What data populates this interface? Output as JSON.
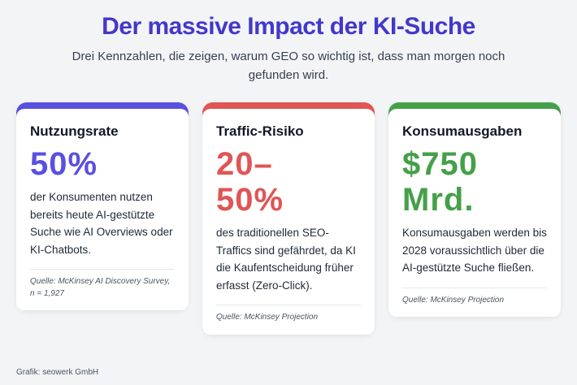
{
  "page": {
    "title": "Der massive Impact der KI-Suche",
    "subtitle": "Drei Kennzahlen, die zeigen, warum GEO so wichtig ist, dass man morgen noch gefunden wird.",
    "credit": "Grafik: seowerk GmbH",
    "background_color": "#f3f4f6",
    "title_color": "#4338ca"
  },
  "cards": [
    {
      "heading": "Nutzungsrate",
      "stat": "50%",
      "accent": "#5a50e0",
      "body": "der Konsumenten nutzen bereits heute AI-gestützte Suche wie AI Overviews oder KI-Chatbots.",
      "source": "Quelle: McKinsey AI Discovery Survey, n = 1,927"
    },
    {
      "heading": "Traffic-Risiko",
      "stat": "20–\n50%",
      "accent": "#e05555",
      "body": "des traditionellen SEO-Traffics sind gefährdet, da KI die Kaufentscheidung früher erfasst (Zero-Click).",
      "source": "Quelle: McKinsey Projection"
    },
    {
      "heading": "Konsumausgaben",
      "stat": "$750\nMrd.",
      "accent": "#45a049",
      "body": "Konsumausgaben werden bis 2028 voraussichtlich über die AI-gestützte Suche fließen.",
      "source": "Quelle: McKinsey Projection"
    }
  ],
  "chart_data": {
    "type": "table",
    "title": "Der massive Impact der KI-Suche",
    "subtitle": "Drei Kennzahlen, die zeigen, warum GEO so wichtig ist, dass man morgen noch gefunden wird.",
    "categories": [
      "Nutzungsrate",
      "Traffic-Risiko",
      "Konsumausgaben"
    ],
    "values": [
      "50%",
      "20–50%",
      "$750 Mrd."
    ],
    "annotations": [
      "der Konsumenten nutzen bereits heute AI-gestützte Suche wie AI Overviews oder KI-Chatbots.",
      "des traditionellen SEO-Traffics sind gefährdet, da KI die Kaufentscheidung früher erfasst (Zero-Click).",
      "Konsumausgaben werden bis 2028 voraussichtlich über die AI-gestützte Suche fließen."
    ],
    "sources": [
      "Quelle: McKinsey AI Discovery Survey, n = 1,927",
      "Quelle: McKinsey Projection",
      "Quelle: McKinsey Projection"
    ],
    "series_colors": [
      "#5a50e0",
      "#e05555",
      "#45a049"
    ]
  }
}
